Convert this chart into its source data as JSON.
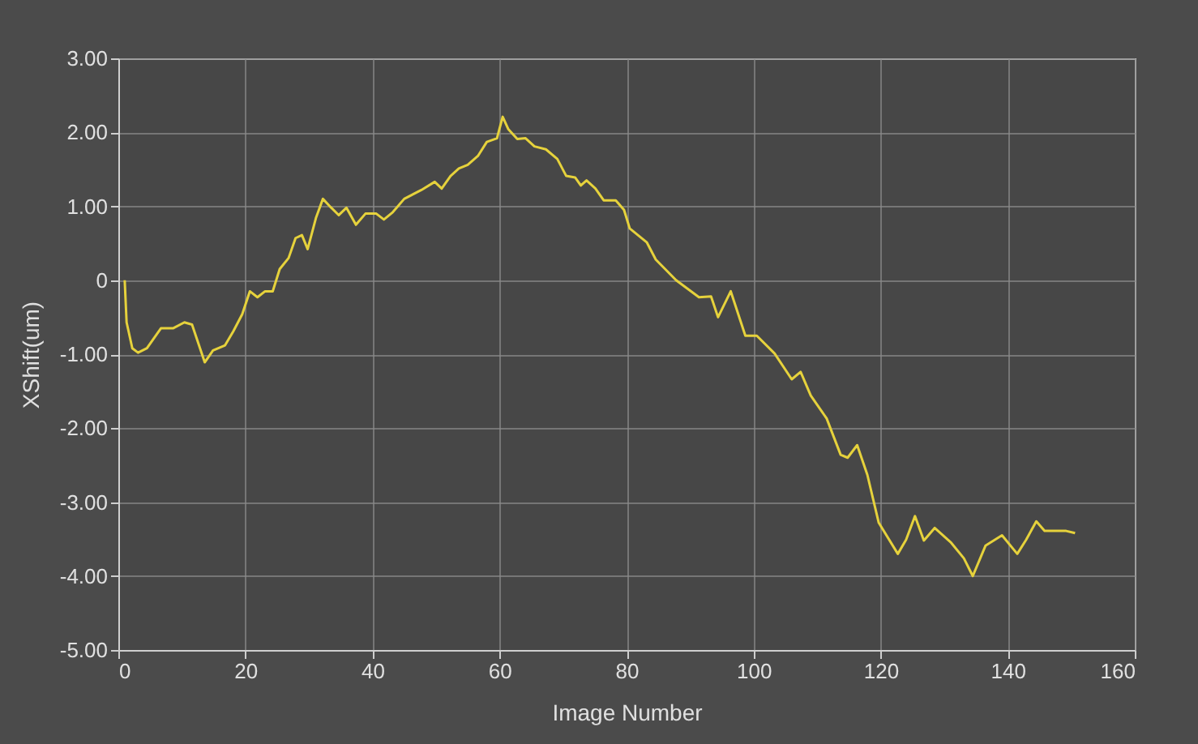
{
  "chart_data": {
    "type": "line",
    "xlabel": "Image Number",
    "ylabel": "XShift(um)",
    "xlim": [
      0,
      160
    ],
    "xticks": [
      0,
      20,
      40,
      60,
      80,
      100,
      120,
      140,
      160
    ],
    "ylim": [
      -5,
      3
    ],
    "yticks": [
      {
        "value": -5,
        "label": "-5.00"
      },
      {
        "value": -4,
        "label": "-4.00"
      },
      {
        "value": -3,
        "label": "-3.00"
      },
      {
        "value": -2,
        "label": "-2.00"
      },
      {
        "value": -1,
        "label": "-1.00"
      },
      0,
      {
        "value": 1,
        "label": "1.00"
      },
      {
        "value": 2,
        "label": "2.00"
      },
      {
        "value": 3,
        "label": "3.00"
      }
    ],
    "grid": true,
    "legend": false,
    "marker": "none",
    "line_style": "solid",
    "series": [
      {
        "color": "#e6d23c",
        "x": [
          1,
          1.3,
          2.2,
          3.1,
          4.5,
          6.7,
          8.6,
          10.4,
          11.6,
          13.6,
          14.9,
          16.8,
          18.1,
          19.5,
          20.7,
          21.9,
          23.1,
          24.3,
          25.4,
          26.8,
          27.9,
          28.9,
          29.8,
          31.1,
          32.2,
          33.4,
          34.7,
          35.9,
          37.4,
          38.9,
          40.6,
          41.8,
          43.2,
          45.0,
          47.7,
          49.8,
          50.9,
          52.3,
          53.6,
          55.0,
          56.6,
          58.0,
          59.6,
          60.5,
          61.4,
          62.8,
          64.1,
          65.5,
          67.3,
          69.1,
          70.5,
          71.9,
          72.8,
          73.7,
          75.1,
          76.4,
          78.3,
          79.6,
          80.5,
          83.2,
          84.6,
          87.8,
          91.4,
          93.3,
          94.4,
          96.4,
          98.7,
          100.5,
          103.3,
          106.0,
          107.4,
          109.0,
          111.5,
          113.7,
          114.8,
          116.3,
          117.9,
          119.7,
          122.7,
          124.0,
          125.4,
          126.8,
          128.5,
          131.1,
          133.1,
          134.5,
          136.5,
          139.1,
          141.5,
          142.9,
          144.5,
          145.8,
          149.2,
          150.6
        ],
        "values": [
          0,
          -0.57,
          -0.92,
          -0.98,
          -0.92,
          -0.65,
          -0.65,
          -0.57,
          -0.6,
          -1.11,
          -0.95,
          -0.88,
          -0.69,
          -0.46,
          -0.15,
          -0.23,
          -0.15,
          -0.15,
          0.15,
          0.3,
          0.57,
          0.61,
          0.42,
          0.84,
          1.1,
          0.99,
          0.88,
          0.98,
          0.75,
          0.9,
          0.9,
          0.82,
          0.92,
          1.1,
          1.22,
          1.33,
          1.24,
          1.41,
          1.51,
          1.56,
          1.68,
          1.87,
          1.92,
          2.21,
          2.04,
          1.91,
          1.92,
          1.81,
          1.77,
          1.64,
          1.41,
          1.39,
          1.28,
          1.35,
          1.24,
          1.08,
          1.08,
          0.95,
          0.7,
          0.51,
          0.28,
          0,
          -0.23,
          -0.22,
          -0.5,
          -0.15,
          -0.75,
          -0.75,
          -0.99,
          -1.34,
          -1.24,
          -1.56,
          -1.87,
          -2.36,
          -2.4,
          -2.23,
          -2.63,
          -3.28,
          -3.7,
          -3.51,
          -3.19,
          -3.52,
          -3.35,
          -3.55,
          -3.76,
          -4.0,
          -3.59,
          -3.45,
          -3.7,
          -3.51,
          -3.26,
          -3.39,
          -3.39,
          -3.42
        ]
      }
    ]
  }
}
